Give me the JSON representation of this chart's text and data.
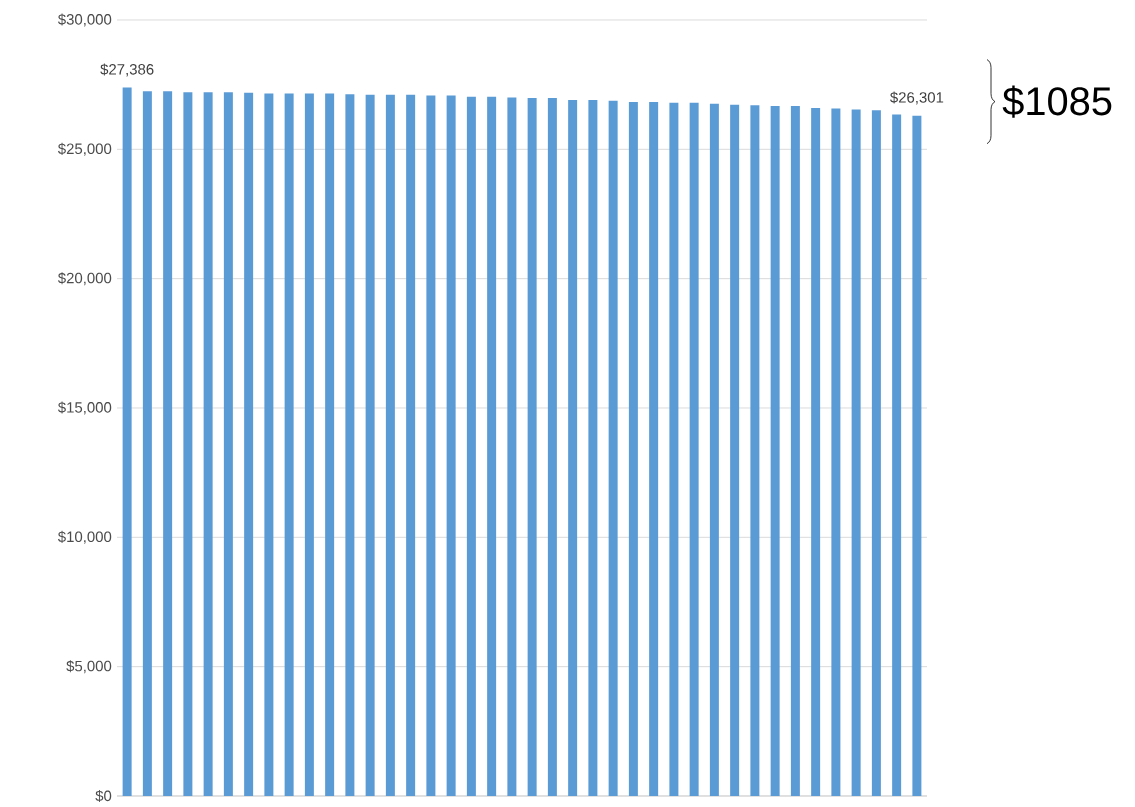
{
  "chart_data": {
    "type": "bar",
    "categories": [
      null,
      null,
      null,
      null,
      null,
      null,
      null,
      null,
      null,
      null,
      null,
      null,
      null,
      null,
      null,
      null,
      null,
      null,
      null,
      null,
      null,
      null,
      null,
      null,
      null,
      null,
      null,
      null,
      null,
      null,
      null,
      null,
      null,
      null,
      null,
      null,
      null,
      null,
      null,
      null
    ],
    "values": [
      27386,
      27240,
      27240,
      27210,
      27210,
      27210,
      27190,
      27160,
      27160,
      27160,
      27160,
      27130,
      27110,
      27110,
      27110,
      27080,
      27080,
      27030,
      27030,
      27000,
      26980,
      26980,
      26910,
      26910,
      26880,
      26830,
      26830,
      26800,
      26800,
      26760,
      26720,
      26700,
      26670,
      26670,
      26600,
      26580,
      26540,
      26510,
      26350,
      26301
    ],
    "value_labels": [
      "$27,386",
      null,
      null,
      null,
      null,
      null,
      null,
      null,
      null,
      null,
      null,
      null,
      null,
      null,
      null,
      null,
      null,
      null,
      null,
      null,
      null,
      null,
      null,
      null,
      null,
      null,
      null,
      null,
      null,
      null,
      null,
      null,
      null,
      null,
      null,
      null,
      null,
      null,
      null,
      "$26,301"
    ],
    "color": "#5b9bd5",
    "ylim": [
      0,
      30000
    ],
    "yticks": [
      {
        "value": 0,
        "label": "$0"
      },
      {
        "value": 5000,
        "label": "$5,000"
      },
      {
        "value": 10000,
        "label": "$10,000"
      },
      {
        "value": 15000,
        "label": "$15,000"
      },
      {
        "value": 20000,
        "label": "$20,000"
      },
      {
        "value": 25000,
        "label": "$25,000"
      },
      {
        "value": 30000,
        "label": "$30,000"
      }
    ],
    "grid": "y",
    "annotations": [
      "$1085"
    ]
  }
}
